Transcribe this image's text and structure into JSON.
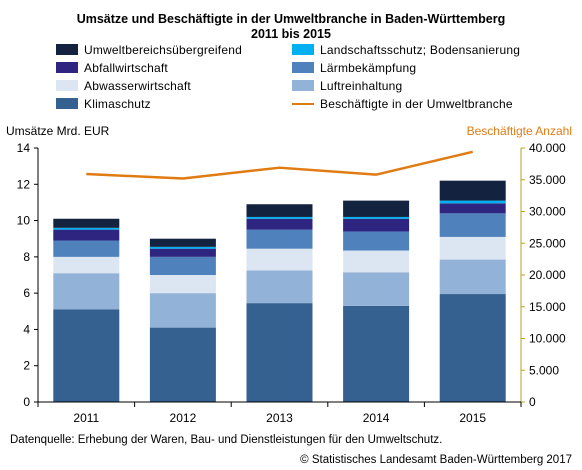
{
  "chart_data": {
    "type": "bar",
    "title": "Umsätze und Beschäftigte in der Umweltbranche in Baden-Württemberg",
    "subtitle": "2011 bis 2015",
    "ylabel": "Umsätze Mrd. EUR",
    "ylabel_right": "Beschäftigte Anzahl",
    "categories": [
      "2011",
      "2012",
      "2013",
      "2014",
      "2015"
    ],
    "ylim": [
      0,
      14
    ],
    "ylim_right": [
      0,
      40000
    ],
    "y_ticks": [
      "0",
      "2",
      "4",
      "6",
      "8",
      "10",
      "12",
      "14"
    ],
    "y_ticks_right": [
      "0",
      "5.000",
      "10.000",
      "15.000",
      "20.000",
      "25.000",
      "30.000",
      "35.000",
      "40.000"
    ],
    "stacked": true,
    "series": [
      {
        "name": "Klimaschutz",
        "color": "#34618f",
        "values": [
          5.1,
          4.1,
          5.45,
          5.3,
          5.95
        ]
      },
      {
        "name": "Luftreinhaltung",
        "color": "#93b2d7",
        "values": [
          2.0,
          1.9,
          1.8,
          1.85,
          1.9
        ]
      },
      {
        "name": "Abwasserwirtschaft",
        "color": "#dce6f2",
        "values": [
          0.9,
          1.0,
          1.2,
          1.2,
          1.25
        ]
      },
      {
        "name": "Lärmbekämpfung",
        "color": "#4f81bd",
        "values": [
          0.9,
          1.0,
          1.05,
          1.05,
          1.3
        ]
      },
      {
        "name": "Abfallwirtschaft",
        "color": "#2e2580",
        "values": [
          0.6,
          0.45,
          0.6,
          0.7,
          0.55
        ]
      },
      {
        "name": "Landschaftsschutz; Bodensanierung",
        "color": "#00b0f0",
        "values": [
          0.1,
          0.1,
          0.1,
          0.1,
          0.15
        ]
      },
      {
        "name": "Umweltbereichsübergreifend",
        "color": "#13223f",
        "values": [
          0.5,
          0.45,
          0.7,
          0.9,
          1.1
        ]
      }
    ],
    "line_series": {
      "name": "Beschäftigte in der Umweltbranche",
      "color": "#e07b12",
      "axis": "right",
      "values": [
        35900,
        35200,
        36900,
        35800,
        39400
      ]
    },
    "grid": false,
    "legend_position": "top"
  },
  "legend_order": [
    "Umweltbereichsübergreifend",
    "Landschaftsschutz; Bodensanierung",
    "Abfallwirtschaft",
    "Lärmbekämpfung",
    "Abwasserwirtschaft",
    "Luftreinhaltung",
    "Klimaschutz",
    "Beschäftigte in der Umweltbranche"
  ],
  "footer": {
    "source": "Datenquelle: Erhebung der Waren, Bau- und Dienstleistungen für den Umweltschutz.",
    "copyright": "© Statistisches Landesamt Baden-Württemberg 2017"
  }
}
